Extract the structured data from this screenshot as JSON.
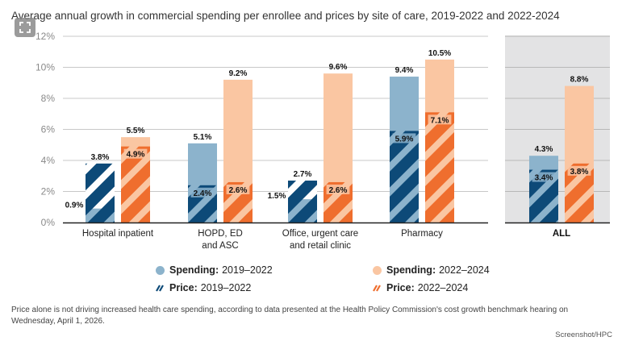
{
  "title": "Average annual growth in commercial spending per enrollee and prices by site of care, 2019-2022 and 2022-2024",
  "expand_icon": "expand-icon",
  "colors": {
    "spending_2019": "#8cb3cc",
    "price_2019": "#0d4a78",
    "spending_2022": "#fac6a2",
    "price_2022": "#ef6e2e",
    "grid": "#c8c8c8",
    "axis": "#222222",
    "all_panel_bg": "#e3e3e4"
  },
  "chart_data": {
    "type": "bar",
    "title": "Average annual growth in commercial spending per enrollee and prices by site of care, 2019-2022 and 2022-2024",
    "xlabel": "",
    "ylabel": "",
    "ylim": [
      0,
      12
    ],
    "yticks": [
      0,
      2,
      4,
      6,
      8,
      10,
      12
    ],
    "ytick_labels": [
      "0%",
      "2%",
      "4%",
      "6%",
      "8%",
      "10%",
      "12%"
    ],
    "grid": true,
    "categories": [
      "Hospital inpatient",
      "HOPD, ED and ASC",
      "Office, urgent care and retail clinic",
      "Pharmacy",
      "ALL"
    ],
    "category_lines": [
      [
        "Hospital inpatient"
      ],
      [
        "HOPD, ED",
        "and ASC"
      ],
      [
        "Office, urgent care",
        "and retail clinic"
      ],
      [
        "Pharmacy"
      ],
      [
        "ALL"
      ]
    ],
    "series": [
      {
        "name": "Spending: 2019–2022",
        "values": [
          0.9,
          5.1,
          1.5,
          9.4,
          4.3
        ],
        "labels": [
          "0.9%",
          "5.1%",
          "1.5%",
          "9.4%",
          "4.3%"
        ]
      },
      {
        "name": "Price: 2019–2022",
        "values": [
          3.8,
          2.4,
          2.7,
          5.9,
          3.4
        ],
        "labels": [
          "3.8%",
          "2.4%",
          "2.7%",
          "5.9%",
          "3.4%"
        ]
      },
      {
        "name": "Spending: 2022–2024",
        "values": [
          5.5,
          9.2,
          9.6,
          10.5,
          8.8
        ],
        "labels": [
          "5.5%",
          "9.2%",
          "9.6%",
          "10.5%",
          "8.8%"
        ]
      },
      {
        "name": "Price: 2022–2024",
        "values": [
          4.9,
          2.6,
          2.6,
          7.1,
          3.8
        ],
        "labels": [
          "4.9%",
          "2.6%",
          "2.6%",
          "7.1%",
          "3.8%"
        ]
      }
    ],
    "highlighted_category": "ALL",
    "legend_position": "bottom"
  },
  "legend": [
    {
      "bold": "Spending:",
      "rest": "2019–2022",
      "icon": "circle"
    },
    {
      "bold": "Spending:",
      "rest": "2022–2024",
      "icon": "circle"
    },
    {
      "bold": "Price:",
      "rest": "2019–2022",
      "icon": "hatch"
    },
    {
      "bold": "Price:",
      "rest": "2022–2024",
      "icon": "hatch"
    }
  ],
  "caption": "Price alone is not driving increased health care spending, according to data presented at the Health Policy Commission's cost growth benchmark hearing on Wednesday, April 1, 2026.",
  "credit": "Screenshot/HPC"
}
